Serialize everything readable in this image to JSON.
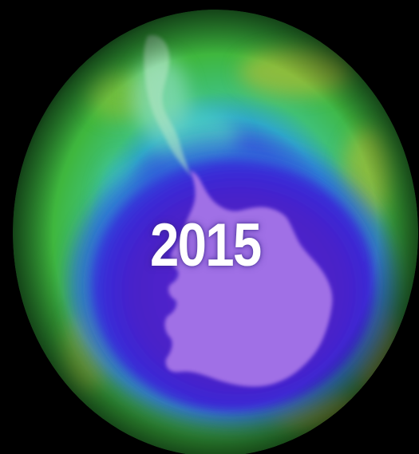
{
  "map": {
    "year": "2015",
    "colors": {
      "background": "#000000",
      "ozone_high": "#2fa83a",
      "ozone_mid_high": "#5cc23c",
      "ozone_warm": "#9ab63a",
      "ozone_mid": "#2ec0b8",
      "ozone_low": "#2d3ccc",
      "ozone_hole": "#4a1fc8",
      "continent": "#a070e6",
      "year_text": "#ffffff"
    },
    "landmass": [
      "antarctica",
      "south-america-tip"
    ]
  }
}
